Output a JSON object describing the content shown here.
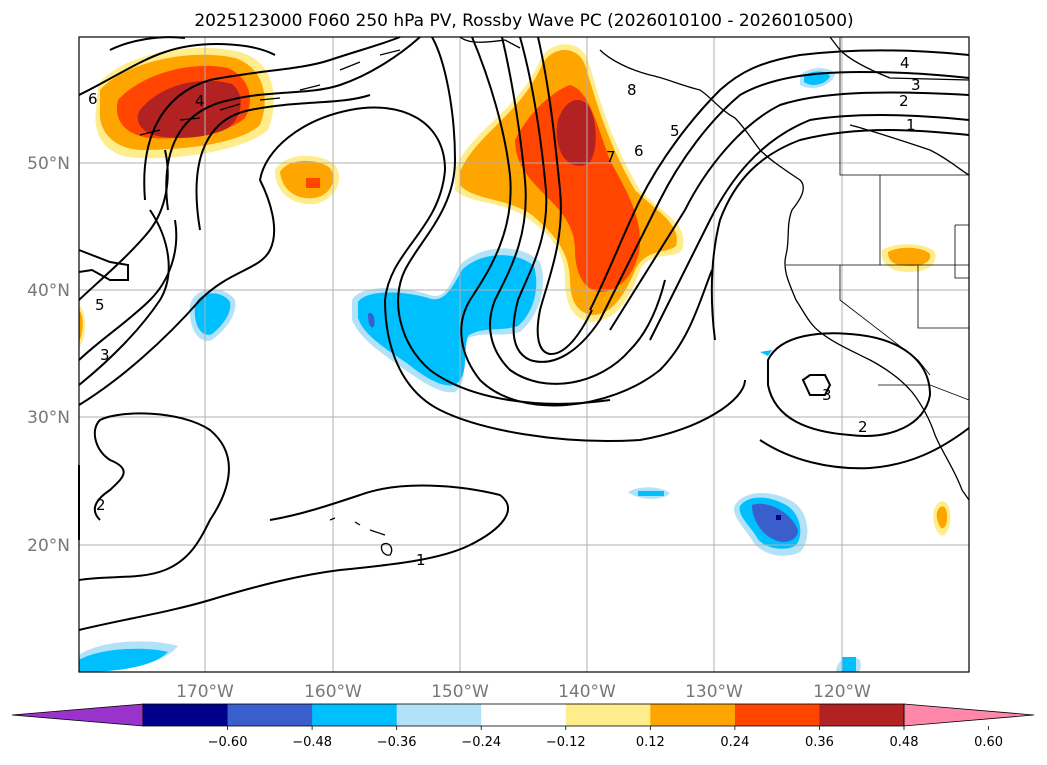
{
  "title": "2025123000 F060 250 hPa PV, Rossby Wave PC (2026010100 - 2026010500)",
  "lat_labels": [
    "50°N",
    "40°N",
    "30°N",
    "20°N"
  ],
  "lon_labels": [
    "170°W",
    "160°W",
    "150°W",
    "140°W",
    "130°W",
    "120°W"
  ],
  "colorbar": {
    "colors": [
      "#9933cc",
      "#00008b",
      "#3a5fcd",
      "#00bfff",
      "#b2e2f8",
      "#ffffff",
      "#ffec8b",
      "#ffa500",
      "#ff4500",
      "#b22222",
      "#ff88aa"
    ],
    "ticks": [
      "−0.60",
      "−0.48",
      "−0.36",
      "−0.24",
      "−0.12",
      "0.12",
      "0.24",
      "0.36",
      "0.48",
      "0.60"
    ]
  },
  "contour_labels": [
    "6",
    "4",
    "8",
    "7",
    "6",
    "5",
    "4",
    "3",
    "2",
    "1",
    "5",
    "3",
    "2",
    "1",
    "3",
    "2"
  ],
  "colors": {
    "warm_light": "#ffec8b",
    "warm_mid": "#ffa500",
    "warm_strong": "#ff4500",
    "warm_peak": "#b22222",
    "cool_light": "#b2e2f8",
    "cool_mid": "#00bfff",
    "cool_strong": "#3a5fcd"
  }
}
